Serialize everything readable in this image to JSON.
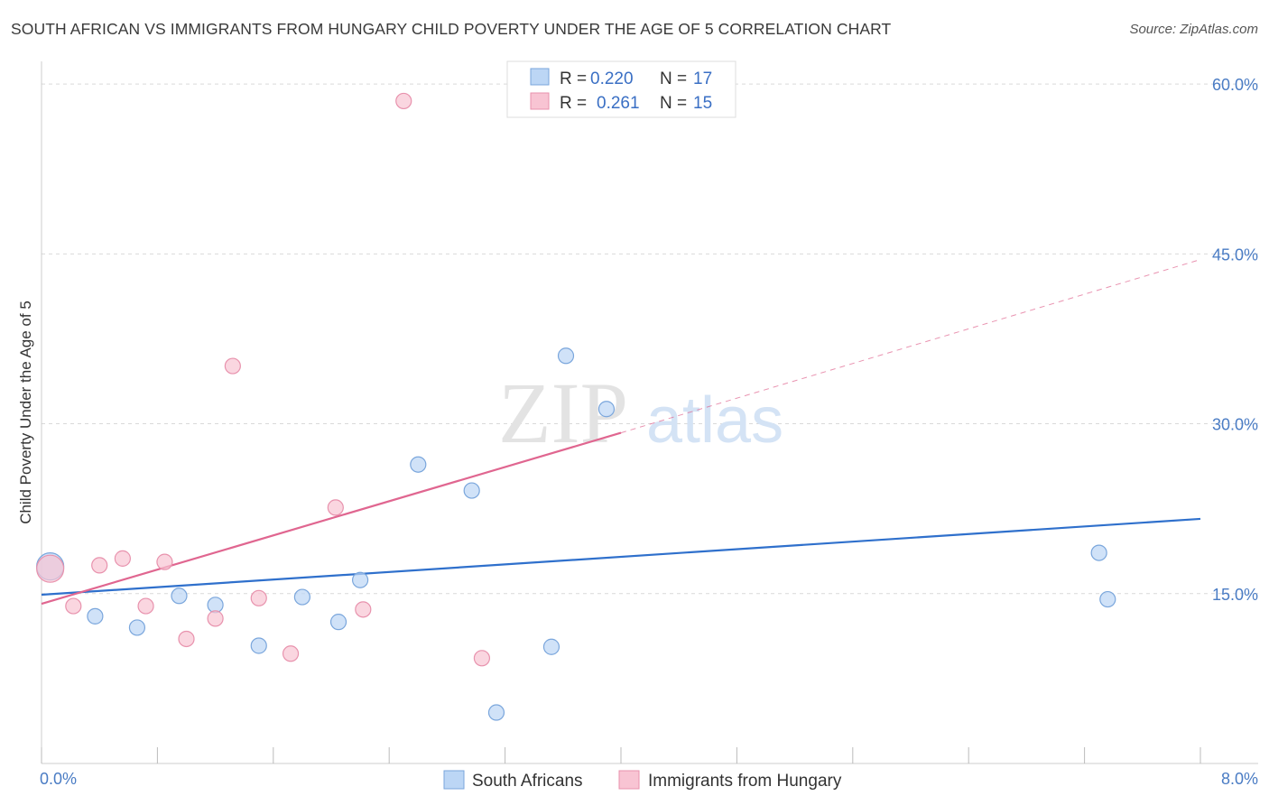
{
  "header": {
    "title": "SOUTH AFRICAN VS IMMIGRANTS FROM HUNGARY CHILD POVERTY UNDER THE AGE OF 5 CORRELATION CHART",
    "source": "Source: ZipAtlas.com"
  },
  "watermark": {
    "part1": "ZIP",
    "part2": "atlas"
  },
  "colors": {
    "blue_fill": "#bcd6f5",
    "blue_stroke": "#7aa6dc",
    "blue_line": "#2f70cc",
    "pink_fill": "#f8c4d3",
    "pink_stroke": "#e892ad",
    "pink_line": "#e06690",
    "grid": "#d9d9d9",
    "tick_text": "#4a7cc4"
  },
  "legend": {
    "series": [
      {
        "r_label": "R =",
        "r_value": "0.220",
        "n_label": "N =",
        "n_value": "17"
      },
      {
        "r_label": "R =",
        "r_value": "0.261",
        "n_label": "N =",
        "n_value": "15"
      }
    ]
  },
  "chart_data": {
    "type": "scatter",
    "title": "SOUTH AFRICAN VS IMMIGRANTS FROM HUNGARY CHILD POVERTY UNDER THE AGE OF 5 CORRELATION CHART",
    "xlabel": "",
    "ylabel": "Child Poverty Under the Age of 5",
    "xlim": [
      0,
      8
    ],
    "ylim": [
      0,
      62
    ],
    "x_tick_labels": [
      "0.0%",
      "8.0%"
    ],
    "y_ticks": [
      15,
      30,
      45,
      60
    ],
    "y_tick_labels": [
      "15.0%",
      "30.0%",
      "45.0%",
      "60.0%"
    ],
    "grid": true,
    "legend_position": "top-center",
    "series": [
      {
        "name": "South Africans",
        "color": "#7aa6dc",
        "points": [
          {
            "x": 0.06,
            "y": 17.4,
            "big": true
          },
          {
            "x": 0.37,
            "y": 13.0
          },
          {
            "x": 0.66,
            "y": 12.0
          },
          {
            "x": 0.95,
            "y": 14.8
          },
          {
            "x": 1.2,
            "y": 14.0
          },
          {
            "x": 1.5,
            "y": 10.4
          },
          {
            "x": 1.8,
            "y": 14.7
          },
          {
            "x": 2.05,
            "y": 12.5
          },
          {
            "x": 2.2,
            "y": 16.2
          },
          {
            "x": 2.6,
            "y": 26.4
          },
          {
            "x": 2.97,
            "y": 24.1
          },
          {
            "x": 3.14,
            "y": 4.5
          },
          {
            "x": 3.52,
            "y": 10.3
          },
          {
            "x": 3.62,
            "y": 36.0
          },
          {
            "x": 3.9,
            "y": 31.3
          },
          {
            "x": 7.3,
            "y": 18.6
          },
          {
            "x": 7.36,
            "y": 14.5
          }
        ],
        "trend": {
          "x0": 0.0,
          "y0": 14.9,
          "x1": 8.0,
          "y1": 21.6
        }
      },
      {
        "name": "Immigrants from Hungary",
        "color": "#e892ad",
        "points": [
          {
            "x": 0.06,
            "y": 17.2,
            "big": true
          },
          {
            "x": 0.22,
            "y": 13.9
          },
          {
            "x": 0.4,
            "y": 17.5
          },
          {
            "x": 0.56,
            "y": 18.1
          },
          {
            "x": 0.72,
            "y": 13.9
          },
          {
            "x": 0.85,
            "y": 17.8
          },
          {
            "x": 1.0,
            "y": 11.0
          },
          {
            "x": 1.2,
            "y": 12.8
          },
          {
            "x": 1.32,
            "y": 35.1
          },
          {
            "x": 1.5,
            "y": 14.6
          },
          {
            "x": 1.72,
            "y": 9.7
          },
          {
            "x": 2.03,
            "y": 22.6
          },
          {
            "x": 2.22,
            "y": 13.6
          },
          {
            "x": 2.5,
            "y": 58.5
          },
          {
            "x": 3.04,
            "y": 9.3
          }
        ],
        "trend": {
          "x0": 0.0,
          "y0": 14.1,
          "x1": 4.0,
          "y1": 29.2
        },
        "trend_ext": {
          "x0": 4.0,
          "y0": 29.2,
          "x1": 8.0,
          "y1": 44.5
        }
      }
    ]
  }
}
